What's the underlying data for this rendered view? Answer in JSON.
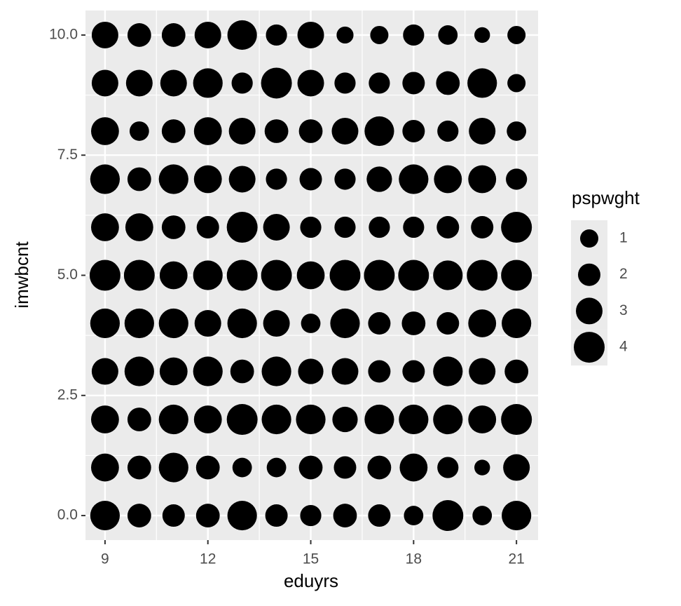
{
  "chart_data": {
    "type": "scatter",
    "x_label": "eduyrs",
    "y_label": "imwbcnt",
    "xlim": [
      8.43,
      21.63
    ],
    "ylim": [
      -0.51,
      10.51
    ],
    "xticks": [
      9,
      12,
      15,
      18,
      21
    ],
    "yticks": [
      {
        "value": 0,
        "label": "0.0"
      },
      {
        "value": 2.5,
        "label": "2.5"
      },
      {
        "value": 5,
        "label": "5.0"
      },
      {
        "value": 7.5,
        "label": "7.5"
      },
      {
        "value": 10,
        "label": "10.0"
      }
    ],
    "grid": true,
    "color": "#000000",
    "size_legend": {
      "title": "pspwght",
      "values": [
        1,
        2,
        3,
        4
      ]
    },
    "series": [
      {
        "x": [
          9,
          10,
          11,
          12,
          13,
          14,
          15,
          16,
          17,
          18,
          19,
          20,
          21,
          9,
          10,
          11,
          12,
          13,
          14,
          15,
          16,
          17,
          18,
          19,
          20,
          21,
          9,
          10,
          11,
          12,
          13,
          14,
          15,
          16,
          17,
          18,
          19,
          20,
          21,
          9,
          10,
          11,
          12,
          13,
          14,
          15,
          16,
          17,
          18,
          19,
          20,
          21,
          9,
          10,
          11,
          12,
          13,
          14,
          15,
          16,
          17,
          18,
          19,
          20,
          21,
          9,
          10,
          11,
          12,
          13,
          14,
          15,
          16,
          17,
          18,
          19,
          20,
          21,
          9,
          10,
          11,
          12,
          13,
          14,
          15,
          16,
          17,
          18,
          19,
          20,
          21,
          9,
          10,
          11,
          12,
          13,
          14,
          15,
          16,
          17,
          18,
          19,
          20,
          21,
          9,
          10,
          11,
          12,
          13,
          14,
          15,
          16,
          17,
          18,
          19,
          20,
          21,
          9,
          10,
          11,
          12,
          13,
          14,
          15,
          16,
          17,
          18,
          19,
          20,
          21,
          9,
          10,
          11,
          12,
          13,
          14,
          15,
          16,
          17,
          18,
          19,
          20,
          21
        ],
        "y": [
          10,
          10,
          10,
          10,
          10,
          10,
          10,
          10,
          10,
          10,
          10,
          10,
          10,
          9,
          9,
          9,
          9,
          9,
          9,
          9,
          9,
          9,
          9,
          9,
          9,
          9,
          8,
          8,
          8,
          8,
          8,
          8,
          8,
          8,
          8,
          8,
          8,
          8,
          8,
          7,
          7,
          7,
          7,
          7,
          7,
          7,
          7,
          7,
          7,
          7,
          7,
          7,
          6,
          6,
          6,
          6,
          6,
          6,
          6,
          6,
          6,
          6,
          6,
          6,
          6,
          5,
          5,
          5,
          5,
          5,
          5,
          5,
          5,
          5,
          5,
          5,
          5,
          5,
          4,
          4,
          4,
          4,
          4,
          4,
          4,
          4,
          4,
          4,
          4,
          4,
          4,
          3,
          3,
          3,
          3,
          3,
          3,
          3,
          3,
          3,
          3,
          3,
          3,
          3,
          2,
          2,
          2,
          2,
          2,
          2,
          2,
          2,
          2,
          2,
          2,
          2,
          2,
          1,
          1,
          1,
          1,
          1,
          1,
          1,
          1,
          1,
          1,
          1,
          1,
          1,
          0,
          0,
          0,
          0,
          0,
          0,
          0,
          0,
          0,
          0,
          0,
          0,
          0
        ],
        "size": [
          3,
          2.3,
          2.3,
          3,
          3.7,
          1.7,
          3,
          0.7,
          1,
          1.7,
          1.3,
          0.4,
          1,
          3,
          3,
          3,
          3.7,
          1.7,
          4,
          3,
          1.7,
          1.7,
          2,
          2.3,
          3.7,
          1,
          3.3,
          1.3,
          2.3,
          3.3,
          3,
          2.3,
          2.3,
          3,
          3.7,
          2,
          1.7,
          3,
          1.3,
          3.7,
          2.3,
          3.7,
          3.3,
          3,
          1.7,
          2,
          1.7,
          2.7,
          3.7,
          3.3,
          3.3,
          1.7,
          3.3,
          3.3,
          2.3,
          2,
          4,
          3,
          1.7,
          1.7,
          1.7,
          1.7,
          2,
          2,
          4,
          4,
          4,
          3.3,
          3.7,
          4,
          4,
          3.3,
          4,
          4,
          4,
          3.7,
          4,
          4,
          3.7,
          3.7,
          3.7,
          3,
          3.7,
          3,
          1.3,
          3.7,
          2,
          2.3,
          2,
          3.3,
          3.7,
          3,
          3.7,
          3.3,
          3.7,
          2.3,
          3.7,
          2.7,
          3,
          2,
          2,
          3.7,
          3,
          2.3,
          3.3,
          2.3,
          3.7,
          3.3,
          4,
          3.7,
          3.7,
          2.7,
          3.7,
          3.7,
          3.7,
          3.3,
          4,
          3.3,
          2.3,
          3.7,
          2.3,
          1.3,
          1.3,
          2.3,
          2,
          2.3,
          3.3,
          1.7,
          0.4,
          3,
          3.7,
          2.3,
          2,
          2.3,
          3.7,
          2,
          1.7,
          2.3,
          2,
          1.3,
          4,
          1.3,
          3.7
        ]
      }
    ]
  }
}
